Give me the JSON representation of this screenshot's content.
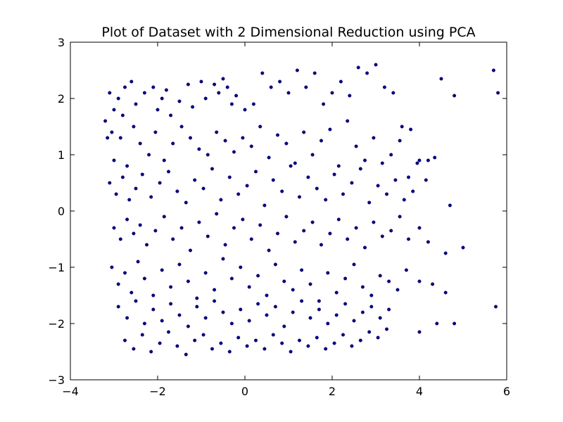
{
  "chart_data": {
    "type": "scatter",
    "title": "Plot of Dataset with 2 Dimensional Reduction using PCA",
    "xlabel": "",
    "ylabel": "",
    "xlim": [
      -4,
      6
    ],
    "ylim": [
      -3,
      3
    ],
    "x_ticks": [
      -4,
      -2,
      0,
      2,
      4,
      6
    ],
    "y_ticks": [
      -3,
      -2,
      -1,
      0,
      1,
      2,
      3
    ],
    "x_tick_labels": [
      "−4",
      "−2",
      "0",
      "2",
      "4",
      "6"
    ],
    "y_tick_labels": [
      "−3",
      "−2",
      "−1",
      "0",
      "1",
      "2",
      "3"
    ],
    "grid": false,
    "marker_color": "#00008b",
    "series": [
      {
        "x": [
          -3.2,
          -3.1,
          -3.0,
          -3.05,
          -2.9,
          -2.8,
          -2.75,
          -2.6,
          -2.5,
          -2.3,
          -2.1,
          -2.0,
          -1.9,
          -1.8,
          -1.7,
          -1.5,
          -1.3,
          -1.2,
          -1.0,
          -0.9,
          -0.7,
          -0.6,
          -0.5,
          -0.4,
          -0.3,
          -0.2,
          0.0,
          0.2,
          0.4,
          0.6,
          0.8,
          1.0,
          1.2,
          1.4,
          1.6,
          1.8,
          2.0,
          2.2,
          2.4,
          2.6,
          2.8,
          3.0,
          3.2,
          3.4,
          3.6,
          3.8,
          4.0,
          4.2,
          4.5,
          4.8,
          5.7,
          5.8,
          -3.15,
          -3.0,
          -2.85,
          -2.7,
          -2.55,
          -2.4,
          -2.2,
          -2.05,
          -1.85,
          -1.65,
          -1.45,
          -1.25,
          -1.05,
          -0.85,
          -0.65,
          -0.45,
          -0.25,
          -0.05,
          0.15,
          0.35,
          0.55,
          0.75,
          0.95,
          1.15,
          1.35,
          1.55,
          1.75,
          1.95,
          2.15,
          2.35,
          2.55,
          2.75,
          2.95,
          3.15,
          3.35,
          3.55,
          3.75,
          3.95,
          4.15,
          4.35,
          -3.1,
          -2.95,
          -2.8,
          -2.65,
          -2.5,
          -2.35,
          -2.15,
          -1.95,
          -1.75,
          -1.55,
          -1.35,
          -1.15,
          -0.95,
          -0.75,
          -0.55,
          -0.35,
          -0.15,
          0.05,
          0.25,
          0.45,
          0.65,
          0.85,
          1.05,
          1.25,
          1.45,
          1.65,
          1.85,
          2.05,
          2.25,
          2.45,
          2.65,
          2.85,
          3.05,
          3.25,
          3.45,
          3.65,
          3.85,
          4.7,
          5.0,
          -3.0,
          -2.85,
          -2.7,
          -2.55,
          -2.4,
          -2.25,
          -2.05,
          -1.85,
          -1.65,
          -1.45,
          -1.25,
          -1.05,
          -0.85,
          -0.65,
          -0.45,
          -0.25,
          -0.05,
          0.15,
          0.35,
          0.55,
          0.75,
          0.95,
          1.15,
          1.35,
          1.55,
          1.75,
          1.95,
          2.15,
          2.35,
          2.55,
          2.75,
          2.95,
          3.15,
          3.35,
          3.55,
          3.75,
          4.0,
          4.2,
          4.6,
          -3.05,
          -2.9,
          -2.75,
          -2.6,
          -2.45,
          -2.3,
          -2.1,
          -1.9,
          -1.7,
          -1.5,
          -1.3,
          -1.1,
          -0.9,
          -0.7,
          -0.5,
          -0.3,
          -0.1,
          0.1,
          0.3,
          0.5,
          0.7,
          0.9,
          1.1,
          1.3,
          1.5,
          1.7,
          1.9,
          2.1,
          2.3,
          2.5,
          2.7,
          2.9,
          3.1,
          3.3,
          3.5,
          3.7,
          4.0,
          4.3,
          4.6,
          5.75,
          -2.9,
          -2.7,
          -2.5,
          -2.3,
          -2.1,
          -1.9,
          -1.7,
          -1.5,
          -1.3,
          -1.1,
          -0.9,
          -0.7,
          -0.5,
          -0.3,
          -0.1,
          0.1,
          0.3,
          0.5,
          0.7,
          0.9,
          1.1,
          1.3,
          1.5,
          1.7,
          1.9,
          2.1,
          2.3,
          2.5,
          2.7,
          2.9,
          3.1,
          3.3,
          4.0,
          4.4,
          4.8,
          -2.75,
          -2.55,
          -2.35,
          -2.15,
          -1.95,
          -1.75,
          -1.55,
          -1.35,
          -1.15,
          -0.95,
          -0.75,
          -0.55,
          -0.35,
          -0.15,
          0.05,
          0.25,
          0.45,
          0.65,
          0.85,
          1.05,
          1.25,
          1.45,
          1.65,
          1.85,
          2.05,
          2.25,
          2.45,
          2.65,
          2.85,
          3.05,
          3.25
        ],
        "y": [
          1.6,
          2.1,
          1.8,
          1.4,
          2.0,
          1.7,
          2.2,
          2.3,
          1.9,
          2.1,
          2.2,
          1.8,
          2.0,
          2.15,
          1.7,
          1.95,
          2.25,
          1.85,
          2.3,
          2.0,
          2.25,
          2.1,
          2.35,
          2.2,
          1.9,
          2.05,
          1.8,
          1.9,
          2.45,
          2.2,
          2.3,
          2.1,
          2.5,
          2.2,
          2.45,
          1.9,
          2.1,
          2.3,
          2.05,
          2.55,
          2.45,
          2.6,
          2.2,
          2.1,
          1.5,
          1.45,
          0.9,
          0.9,
          2.35,
          2.05,
          2.5,
          2.1,
          1.3,
          0.9,
          1.3,
          0.8,
          1.5,
          1.2,
          1.0,
          1.4,
          0.9,
          1.2,
          1.5,
          1.3,
          1.1,
          1.0,
          1.4,
          1.25,
          1.05,
          1.3,
          1.15,
          1.5,
          0.95,
          1.35,
          1.2,
          0.85,
          1.4,
          1.0,
          1.25,
          1.45,
          0.8,
          1.6,
          1.15,
          0.9,
          1.3,
          0.85,
          1.0,
          1.25,
          0.6,
          0.85,
          0.55,
          0.95,
          0.5,
          0.3,
          0.6,
          0.2,
          0.4,
          0.65,
          0.25,
          0.5,
          0.7,
          0.35,
          0.15,
          0.55,
          0.4,
          0.75,
          0.2,
          0.6,
          0.3,
          0.45,
          0.7,
          0.1,
          0.55,
          0.35,
          0.8,
          0.25,
          0.6,
          0.4,
          0.2,
          0.65,
          0.3,
          0.5,
          0.75,
          0.15,
          0.45,
          0.3,
          0.55,
          0.2,
          0.35,
          0.1,
          -0.65,
          -0.3,
          -0.5,
          -0.15,
          -0.4,
          -0.25,
          -0.6,
          -0.35,
          -0.1,
          -0.5,
          -0.3,
          -0.7,
          -0.2,
          -0.45,
          -0.05,
          -0.6,
          -0.3,
          -0.15,
          -0.5,
          -0.25,
          -0.7,
          -0.4,
          -0.1,
          -0.55,
          -0.35,
          -0.2,
          -0.6,
          -0.4,
          -0.15,
          -0.5,
          -0.3,
          -0.65,
          -0.2,
          -0.45,
          -0.35,
          -0.1,
          -0.5,
          -0.3,
          -0.55,
          -0.75,
          -1.0,
          -1.3,
          -1.1,
          -1.45,
          -0.9,
          -1.2,
          -1.5,
          -1.05,
          -1.35,
          -0.95,
          -1.25,
          -1.55,
          -1.1,
          -1.4,
          -0.85,
          -1.2,
          -1.0,
          -1.35,
          -1.15,
          -1.5,
          -0.95,
          -1.25,
          -1.4,
          -1.05,
          -1.3,
          -1.6,
          -1.1,
          -1.45,
          -1.2,
          -0.95,
          -1.35,
          -1.5,
          -1.15,
          -1.25,
          -1.4,
          -1.05,
          -1.25,
          -1.3,
          -1.45,
          -1.7,
          -1.7,
          -1.9,
          -1.6,
          -2.0,
          -1.75,
          -1.95,
          -1.65,
          -1.85,
          -2.05,
          -1.7,
          -1.9,
          -1.6,
          -1.8,
          -2.0,
          -1.75,
          -1.95,
          -1.65,
          -1.85,
          -1.7,
          -2.05,
          -1.8,
          -1.6,
          -1.9,
          -1.75,
          -2.0,
          -1.85,
          -1.65,
          -1.95,
          -1.8,
          -1.7,
          -1.9,
          -1.75,
          -2.15,
          -2.0,
          -2.0,
          -2.3,
          -2.45,
          -2.2,
          -2.5,
          -2.35,
          -2.15,
          -2.4,
          -2.55,
          -2.3,
          -2.2,
          -2.45,
          -2.35,
          -2.5,
          -2.25,
          -2.4,
          -2.3,
          -2.45,
          -2.2,
          -2.35,
          -2.5,
          -2.3,
          -2.4,
          -2.25,
          -2.45,
          -2.35,
          -2.2,
          -2.4,
          -2.3,
          -2.15,
          -2.25,
          -2.1
        ]
      }
    ]
  }
}
